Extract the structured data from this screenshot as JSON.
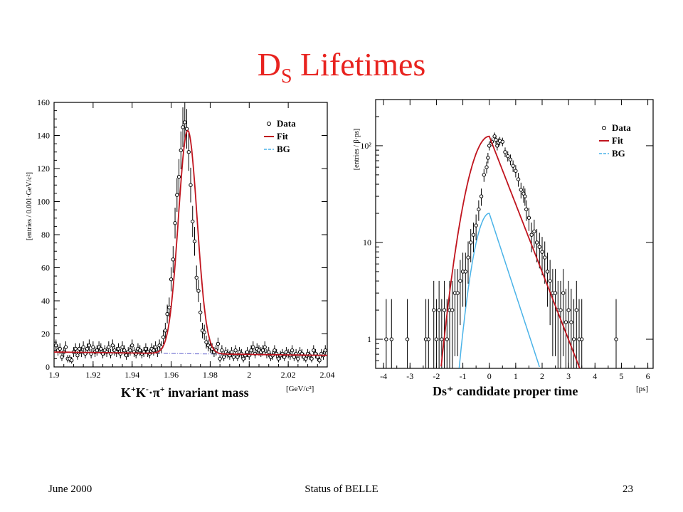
{
  "slide": {
    "title_main": "D",
    "title_sub": "S",
    "title_rest": " Lifetimes"
  },
  "footer": {
    "date": "June 2000",
    "title": "Status of BELLE",
    "page": "23"
  },
  "colors": {
    "title": "#e8231f",
    "fit": "#c0141e",
    "bg_curve": "#4ab3e8",
    "bg_line_left": "#7e7ed6"
  },
  "chart_data": [
    {
      "type": "scatter",
      "title": "",
      "xlabel_parts": [
        "K",
        "+",
        "K",
        "-",
        "·π",
        "+",
        " invariant mass"
      ],
      "xunit": "[GeV/c²]",
      "ylabel": "[entries / 0.001·GeV/c²]",
      "xlim": [
        1.9,
        2.04
      ],
      "ylim": [
        0,
        160
      ],
      "xticks": [
        1.9,
        1.92,
        1.94,
        1.96,
        1.98,
        2,
        2.02,
        2.04
      ],
      "xtick_labels": [
        "1.9",
        "1.92",
        "1.94",
        "1.96",
        "1.98",
        "2",
        "2.02",
        "2.04"
      ],
      "yticks": [
        0,
        20,
        40,
        60,
        80,
        100,
        120,
        140,
        160
      ],
      "ytick_labels": [
        "0",
        "20",
        "40",
        "60",
        "80",
        "100",
        "120",
        "140",
        "160"
      ],
      "legend": {
        "position": "top-right",
        "entries": [
          "Data",
          "Fit",
          "BG"
        ]
      },
      "fit_model": {
        "peak_x": 1.9685,
        "sigma": 0.0048,
        "amplitude": 135,
        "bg_start": 9,
        "bg_end": 7
      },
      "series": [
        {
          "name": "Data",
          "points": [
            [
              1.901,
              13
            ],
            [
              1.902,
              10
            ],
            [
              1.903,
              11
            ],
            [
              1.904,
              6
            ],
            [
              1.905,
              9
            ],
            [
              1.906,
              12
            ],
            [
              1.907,
              5
            ],
            [
              1.908,
              5
            ],
            [
              1.909,
              4
            ],
            [
              1.91,
              9
            ],
            [
              1.911,
              11
            ],
            [
              1.912,
              7
            ],
            [
              1.913,
              11
            ],
            [
              1.914,
              9
            ],
            [
              1.915,
              12
            ],
            [
              1.916,
              8
            ],
            [
              1.917,
              11
            ],
            [
              1.918,
              13
            ],
            [
              1.919,
              8
            ],
            [
              1.92,
              12
            ],
            [
              1.921,
              9
            ],
            [
              1.922,
              10
            ],
            [
              1.923,
              12
            ],
            [
              1.924,
              11
            ],
            [
              1.925,
              8
            ],
            [
              1.926,
              10
            ],
            [
              1.927,
              9
            ],
            [
              1.928,
              12
            ],
            [
              1.929,
              8
            ],
            [
              1.93,
              13
            ],
            [
              1.931,
              10
            ],
            [
              1.932,
              9
            ],
            [
              1.933,
              11
            ],
            [
              1.934,
              8
            ],
            [
              1.935,
              12
            ],
            [
              1.936,
              10
            ],
            [
              1.937,
              7
            ],
            [
              1.938,
              9
            ],
            [
              1.939,
              10
            ],
            [
              1.94,
              13
            ],
            [
              1.941,
              9
            ],
            [
              1.942,
              8
            ],
            [
              1.943,
              11
            ],
            [
              1.944,
              10
            ],
            [
              1.945,
              8
            ],
            [
              1.946,
              9
            ],
            [
              1.947,
              11
            ],
            [
              1.948,
              9
            ],
            [
              1.949,
              8
            ],
            [
              1.95,
              11
            ],
            [
              1.951,
              10
            ],
            [
              1.952,
              12
            ],
            [
              1.953,
              9
            ],
            [
              1.954,
              13
            ],
            [
              1.955,
              12
            ],
            [
              1.956,
              18
            ],
            [
              1.957,
              22
            ],
            [
              1.958,
              32
            ],
            [
              1.959,
              36
            ],
            [
              1.96,
              53
            ],
            [
              1.961,
              65
            ],
            [
              1.962,
              87
            ],
            [
              1.963,
              104
            ],
            [
              1.964,
              115
            ],
            [
              1.965,
              131
            ],
            [
              1.966,
              145
            ],
            [
              1.967,
              148
            ],
            [
              1.968,
              144
            ],
            [
              1.969,
              130
            ],
            [
              1.97,
              110
            ],
            [
              1.971,
              88
            ],
            [
              1.972,
              76
            ],
            [
              1.973,
              54
            ],
            [
              1.974,
              46
            ],
            [
              1.975,
              33
            ],
            [
              1.976,
              22
            ],
            [
              1.977,
              21
            ],
            [
              1.978,
              15
            ],
            [
              1.979,
              13
            ],
            [
              1.98,
              12
            ],
            [
              1.981,
              11
            ],
            [
              1.982,
              9
            ],
            [
              1.983,
              10
            ],
            [
              1.984,
              14
            ],
            [
              1.985,
              5
            ],
            [
              1.986,
              10
            ],
            [
              1.987,
              6
            ],
            [
              1.988,
              9
            ],
            [
              1.989,
              8
            ],
            [
              1.99,
              7
            ],
            [
              1.991,
              9
            ],
            [
              1.992,
              6
            ],
            [
              1.993,
              10
            ],
            [
              1.994,
              6
            ],
            [
              1.995,
              9
            ],
            [
              1.996,
              8
            ],
            [
              1.997,
              5
            ],
            [
              1.998,
              7
            ],
            [
              1.999,
              9
            ],
            [
              2.0,
              7
            ],
            [
              2.001,
              10
            ],
            [
              2.002,
              12
            ],
            [
              2.003,
              8
            ],
            [
              2.004,
              11
            ],
            [
              2.005,
              10
            ],
            [
              2.006,
              9
            ],
            [
              2.007,
              10
            ],
            [
              2.008,
              12
            ],
            [
              2.009,
              8
            ],
            [
              2.01,
              9
            ],
            [
              2.011,
              6
            ],
            [
              2.012,
              7
            ],
            [
              2.013,
              10
            ],
            [
              2.014,
              8
            ],
            [
              2.015,
              5
            ],
            [
              2.016,
              7
            ],
            [
              2.017,
              8
            ],
            [
              2.018,
              6
            ],
            [
              2.019,
              9
            ],
            [
              2.02,
              8
            ],
            [
              2.021,
              7
            ],
            [
              2.022,
              10
            ],
            [
              2.023,
              6
            ],
            [
              2.024,
              8
            ],
            [
              2.025,
              5
            ],
            [
              2.026,
              9
            ],
            [
              2.027,
              8
            ],
            [
              2.028,
              6
            ],
            [
              2.029,
              5
            ],
            [
              2.03,
              8
            ],
            [
              2.031,
              7
            ],
            [
              2.032,
              5
            ],
            [
              2.033,
              10
            ],
            [
              2.034,
              8
            ],
            [
              2.035,
              6
            ],
            [
              2.036,
              4
            ],
            [
              2.037,
              8
            ],
            [
              2.038,
              7
            ],
            [
              2.039,
              10
            ]
          ]
        }
      ]
    },
    {
      "type": "scatter",
      "title": "",
      "xlabel": "Ds⁺ candidate proper time",
      "xunit": "[ps]",
      "ylabel": "[entries / β·ps]",
      "yscale": "log",
      "xlim": [
        -4.3,
        6.2
      ],
      "ylim": [
        0.5,
        300
      ],
      "xticks": [
        -4,
        -3,
        -2,
        -1,
        0,
        1,
        2,
        3,
        4,
        5,
        6
      ],
      "xtick_labels": [
        "-4",
        "-3",
        "-2",
        "-1",
        "0",
        "1",
        "2",
        "3",
        "4",
        "5",
        "6"
      ],
      "yticks": [
        1,
        10,
        100
      ],
      "ytick_labels": [
        "1",
        "10",
        "10²"
      ],
      "legend": {
        "position": "top-right",
        "entries": [
          "Data",
          "Fit",
          "BG"
        ]
      },
      "fit_model": {
        "peak_x": 0.0,
        "peak_y": 125,
        "sigma_left": 0.55,
        "tau_right": 0.62,
        "bg_peak": 20,
        "bg_sigma_left": 0.42,
        "bg_tau_right": 0.52
      },
      "series": [
        {
          "name": "Data",
          "points": [
            [
              -3.9,
              1
            ],
            [
              -3.7,
              1
            ],
            [
              -3.1,
              1
            ],
            [
              -2.4,
              1
            ],
            [
              -2.3,
              1
            ],
            [
              -2.1,
              2
            ],
            [
              -2.0,
              1
            ],
            [
              -1.9,
              2
            ],
            [
              -1.8,
              1
            ],
            [
              -1.7,
              2
            ],
            [
              -1.6,
              1
            ],
            [
              -1.5,
              2
            ],
            [
              -1.4,
              2
            ],
            [
              -1.3,
              3
            ],
            [
              -1.2,
              3
            ],
            [
              -1.1,
              4
            ],
            [
              -1.0,
              5
            ],
            [
              -0.9,
              5
            ],
            [
              -0.8,
              7
            ],
            [
              -0.7,
              10
            ],
            [
              -0.6,
              12
            ],
            [
              -0.5,
              15
            ],
            [
              -0.4,
              22
            ],
            [
              -0.3,
              30
            ],
            [
              -0.2,
              50
            ],
            [
              -0.1,
              60
            ],
            [
              -0.05,
              75
            ],
            [
              0.0,
              100
            ],
            [
              0.1,
              110
            ],
            [
              0.2,
              125
            ],
            [
              0.25,
              115
            ],
            [
              0.3,
              100
            ],
            [
              0.35,
              108
            ],
            [
              0.4,
              112
            ],
            [
              0.5,
              110
            ],
            [
              0.6,
              86
            ],
            [
              0.7,
              78
            ],
            [
              0.8,
              72
            ],
            [
              0.9,
              62
            ],
            [
              1.0,
              55
            ],
            [
              1.1,
              45
            ],
            [
              1.2,
              35
            ],
            [
              1.3,
              32
            ],
            [
              1.35,
              30
            ],
            [
              1.4,
              22
            ],
            [
              1.5,
              18
            ],
            [
              1.6,
              12
            ],
            [
              1.7,
              13
            ],
            [
              1.8,
              10
            ],
            [
              1.9,
              9
            ],
            [
              2.0,
              8
            ],
            [
              2.1,
              7
            ],
            [
              2.2,
              5
            ],
            [
              2.3,
              4
            ],
            [
              2.4,
              3
            ],
            [
              2.5,
              3
            ],
            [
              2.6,
              2
            ],
            [
              2.7,
              2
            ],
            [
              2.8,
              3
            ],
            [
              2.9,
              1.5
            ],
            [
              3.0,
              2
            ],
            [
              3.1,
              1.5
            ],
            [
              3.2,
              1
            ],
            [
              3.3,
              2
            ],
            [
              3.4,
              1
            ],
            [
              3.5,
              1
            ],
            [
              4.8,
              1
            ]
          ]
        }
      ]
    }
  ]
}
